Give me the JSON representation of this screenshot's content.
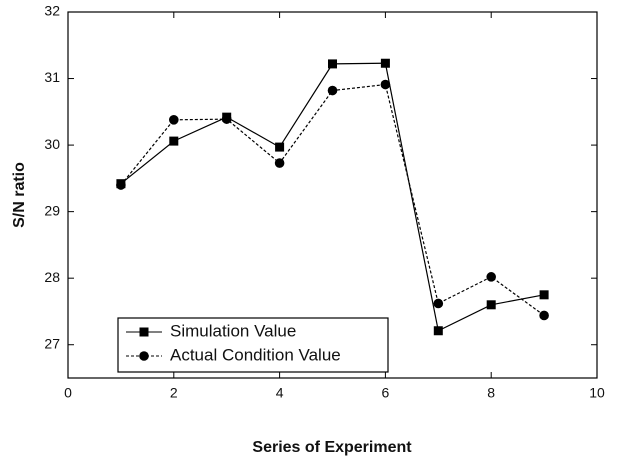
{
  "chart_data": {
    "type": "line",
    "xlabel": "Series of Experiment",
    "ylabel": "S/N ratio",
    "x": [
      1,
      2,
      3,
      4,
      5,
      6,
      7,
      8,
      9
    ],
    "series": [
      {
        "name": "Simulation Value",
        "color": "#000000",
        "marker": "square",
        "linestyle": "solid",
        "values": [
          29.42,
          30.06,
          30.42,
          29.97,
          31.22,
          31.23,
          27.21,
          27.6,
          27.75
        ]
      },
      {
        "name": "Actual Condition Value",
        "color": "#000000",
        "marker": "circle",
        "linestyle": "dotted",
        "values": [
          29.4,
          30.38,
          30.39,
          29.73,
          30.82,
          30.91,
          27.62,
          28.02,
          27.44
        ]
      }
    ],
    "xlim": [
      0,
      10
    ],
    "xticks": [
      0,
      2,
      4,
      6,
      8,
      10
    ],
    "ylim": [
      26.5,
      32
    ],
    "yticks": [
      27,
      28,
      29,
      30,
      31,
      32
    ],
    "grid": false,
    "legend": "lower left"
  }
}
